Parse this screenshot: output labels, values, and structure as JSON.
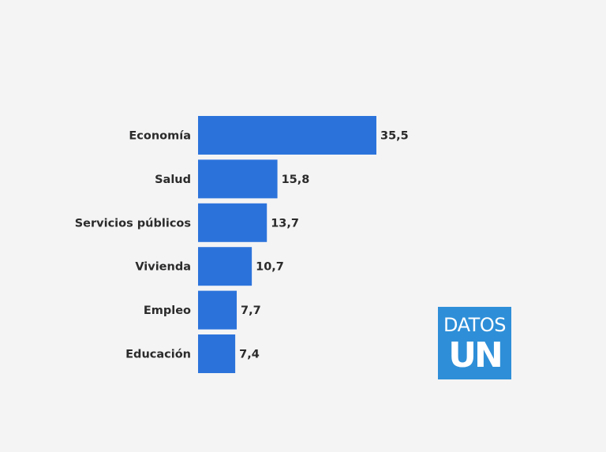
{
  "chart_data": {
    "type": "bar",
    "orientation": "horizontal",
    "categories": [
      "Economía",
      "Salud",
      "Servicios públicos",
      "Vivienda",
      "Empleo",
      "Educación"
    ],
    "values": [
      35.5,
      15.8,
      13.7,
      10.7,
      7.7,
      7.4
    ],
    "value_labels": [
      "35,5",
      "15,8",
      "13,7",
      "10,7",
      "7,7",
      "7,4"
    ],
    "xlim": [
      0,
      35.5
    ],
    "grid": false,
    "bar_color": "#2b73db"
  },
  "logo": {
    "line1": "DATOS",
    "line2": "UN",
    "color": "#2e8fd8"
  }
}
